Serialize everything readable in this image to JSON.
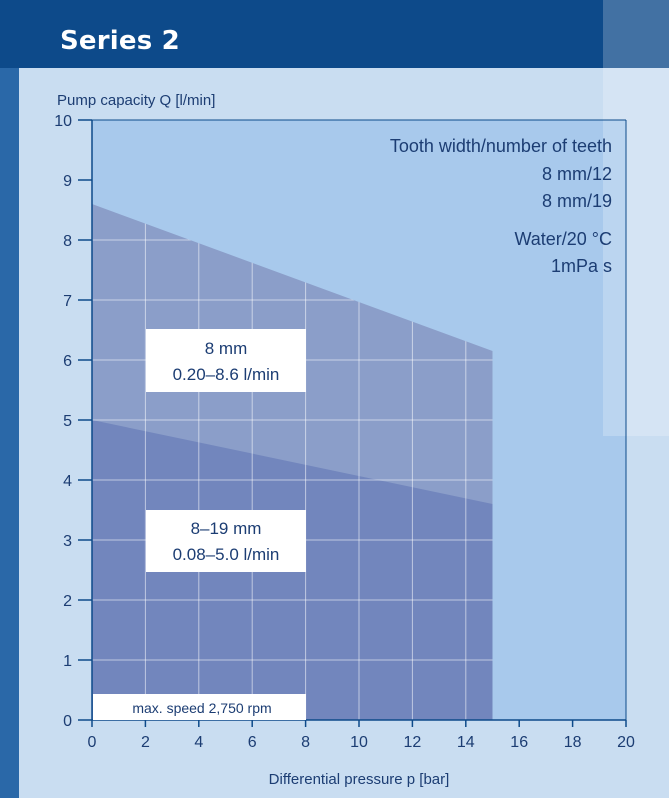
{
  "header": {
    "title": "Series 2"
  },
  "colors": {
    "page_bg": "#2a68a8",
    "header_bg": "#0d4a8a",
    "panel_bg": "#c9ddf1",
    "plot_bg": "#a8c9ec",
    "region_8mm": "#8b9ec9",
    "region_8_19mm": "#7286bd",
    "grid": "#ffffff",
    "axis": "#0d4a8a",
    "text": "#1c3d73"
  },
  "chart_data": {
    "type": "area",
    "ylabel": "Pump capacity Q [l/min]",
    "xlabel": "Differential pressure p [bar]",
    "xlim": [
      0,
      20
    ],
    "ylim": [
      0,
      10
    ],
    "x_ticks": [
      "0",
      "2",
      "4",
      "6",
      "8",
      "10",
      "12",
      "14",
      "16",
      "18",
      "20"
    ],
    "y_ticks": [
      "0",
      "1",
      "2",
      "3",
      "4",
      "5",
      "6",
      "7",
      "8",
      "9",
      "10"
    ],
    "grid": true,
    "legend_position": "top-right",
    "legend": {
      "heading": "Tooth width/number of teeth",
      "entries": [
        "8 mm/12",
        "8 mm/19"
      ],
      "medium": "Water/20 °C",
      "viscosity": "1mPa s"
    },
    "series": [
      {
        "name": "8 mm",
        "x": [
          0,
          15
        ],
        "y_upper": [
          8.6,
          6.15
        ],
        "y_lower": [
          0,
          0
        ],
        "range_label": "0.20–8.6 l/min"
      },
      {
        "name": "8–19 mm",
        "x": [
          0,
          15
        ],
        "y_upper": [
          5.0,
          3.6
        ],
        "y_lower": [
          0,
          0
        ],
        "range_label": "0.08–5.0 l/min"
      }
    ],
    "annotations": {
      "max_speed": "max. speed 2,750 rpm",
      "box1_title": "8 mm",
      "box1_range": "0.20–8.6 l/min",
      "box2_title": "8–19 mm",
      "box2_range": "0.08–5.0 l/min"
    }
  }
}
